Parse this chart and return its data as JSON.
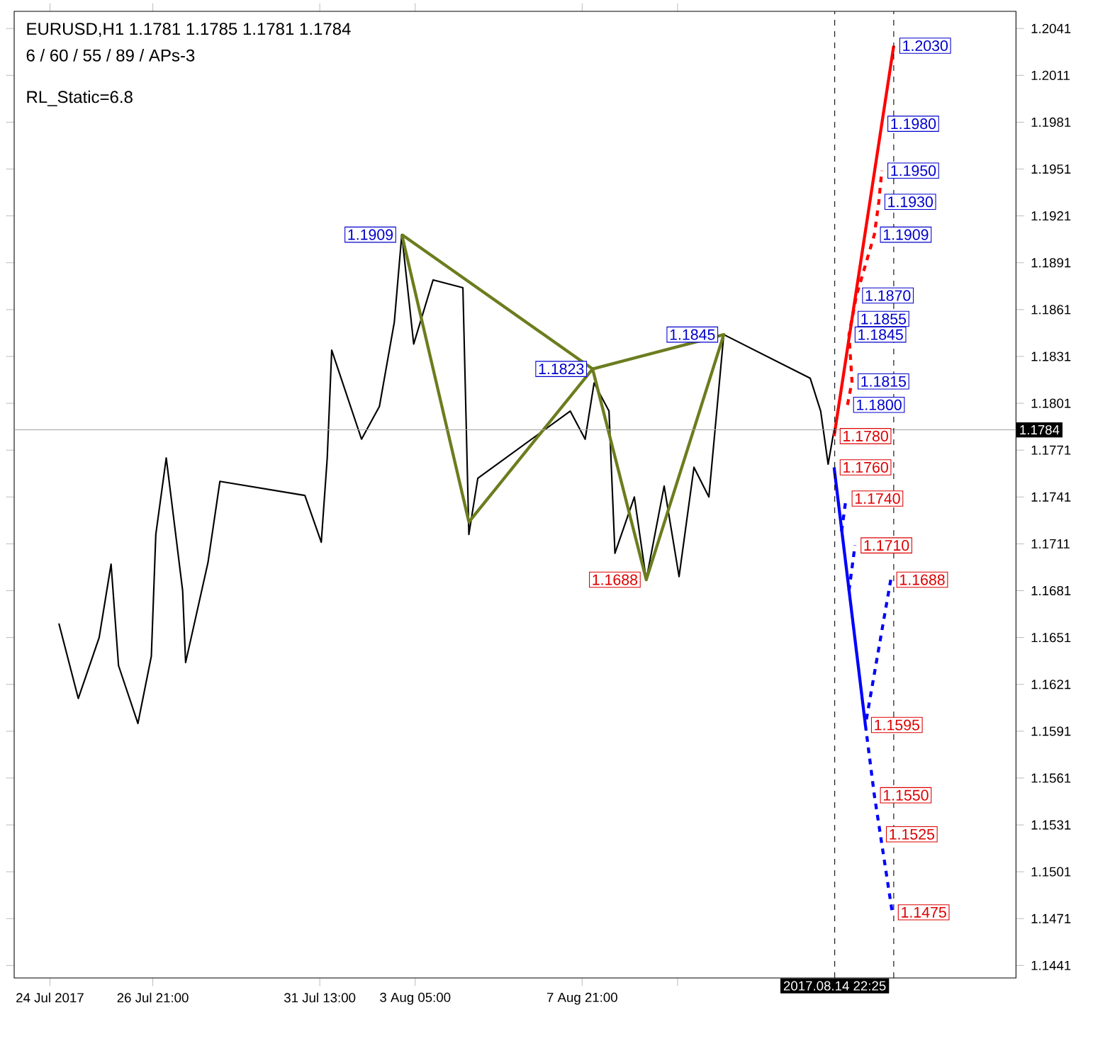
{
  "chart_data": {
    "type": "line",
    "title": "EURUSD,H1  1.1781 1.1785 1.1781 1.1784",
    "subtitle": "6 / 60 / 55 / 89 / APs-3",
    "grid": false,
    "marker": "none",
    "xlim": [
      "2017-07-23T00:00",
      "2017-08-20T00:00"
    ],
    "ylim": [
      1.1433,
      1.2052
    ],
    "xticks": [
      {
        "value": "2017-07-24",
        "label": "24 Jul 2017"
      },
      {
        "value": "2017-07-26T21:00",
        "label": "26 Jul 21:00"
      },
      {
        "value": "2017-07-31T13:00",
        "label": "31 Jul 13:00"
      },
      {
        "value": "2017-08-03T05:00",
        "label": "3 Aug 05:00"
      },
      {
        "value": "2017-08-07T21:00",
        "label": "7 Aug 21:00"
      },
      {
        "value": "2017-08-10T13:00",
        "label": null
      }
    ],
    "yticks": [
      1.2041,
      1.2011,
      1.1981,
      1.1951,
      1.1921,
      1.1891,
      1.1861,
      1.1831,
      1.1801,
      1.1771,
      1.1741,
      1.1711,
      1.1681,
      1.1651,
      1.1621,
      1.1591,
      1.1561,
      1.1531,
      1.1501,
      1.1471,
      1.1441
    ],
    "series": [
      {
        "color": "#000000",
        "x": [
          "2017-07-24T06:00",
          "2017-07-24T19:00",
          "2017-07-25T09:00",
          "2017-07-25T17:00",
          "2017-07-25T22:00",
          "2017-07-26T11:00",
          "2017-07-26T20:00",
          "2017-07-26T23:00",
          "2017-07-27T06:00",
          "2017-07-27T17:00",
          "2017-07-27T19:00",
          "2017-07-28T10:00",
          "2017-07-28T18:00",
          "2017-07-31T03:00",
          "2017-07-31T14:00",
          "2017-07-31T18:00",
          "2017-07-31T21:00",
          "2017-08-01T17:00",
          "2017-08-02T05:00",
          "2017-08-02T15:00",
          "2017-08-02T20:00",
          "2017-08-03T04:00",
          "2017-08-03T17:00",
          "2017-08-04T13:00",
          "2017-08-04T17:00",
          "2017-08-04T23:00",
          "2017-08-07T13:00",
          "2017-08-07T23:00",
          "2017-08-08T05:00",
          "2017-08-08T15:00",
          "2017-08-08T19:00",
          "2017-08-09T08:00",
          "2017-08-09T16:00",
          "2017-08-10T04:00",
          "2017-08-10T14:00",
          "2017-08-11T00:00",
          "2017-08-11T10:00",
          "2017-08-11T20:00",
          "2017-08-14T06:00",
          "2017-08-14T13:00",
          "2017-08-14T18:00",
          "2017-08-14T22:00"
        ],
        "values": [
          1.166,
          1.1612,
          1.1651,
          1.1698,
          1.1633,
          1.1596,
          1.1639,
          1.1717,
          1.1766,
          1.1681,
          1.1635,
          1.1699,
          1.1751,
          1.1742,
          1.1712,
          1.1766,
          1.1835,
          1.1778,
          1.1799,
          1.1853,
          1.1909,
          1.1839,
          1.188,
          1.1875,
          1.1717,
          1.1753,
          1.1796,
          1.1778,
          1.1814,
          1.1796,
          1.1705,
          1.1741,
          1.1688,
          1.1748,
          1.169,
          1.176,
          1.1741,
          1.1845,
          1.1817,
          1.1796,
          1.1762,
          1.1784
        ]
      },
      {
        "color": "#6b7d1e",
        "x": [
          "2017-08-02T20:00",
          "2017-08-04T17:00",
          "2017-08-08T04:00",
          "2017-08-09T16:00",
          "2017-08-11T20:00",
          "2017-08-08T04:00"
        ],
        "values": [
          1.1909,
          1.1725,
          1.1823,
          1.1688,
          1.1845,
          1.1823
        ]
      },
      {
        "color": "#6b7d1e",
        "x": [
          "2017-08-02T20:00",
          "2017-08-08T04:00"
        ],
        "values": [
          1.1909,
          1.1823
        ]
      },
      {
        "color": "#ff0000",
        "x": [
          "2017-08-14T22:00",
          "2017-08-16T14:00"
        ],
        "values": [
          1.178,
          1.203
        ]
      },
      {
        "color": "#ff0000",
        "line_style": "dashed",
        "x": [
          "2017-08-15T07:00",
          "2017-08-15T10:00",
          "2017-08-15T08:00",
          "2017-08-15T10:00",
          "2017-08-15T13:00",
          "2017-08-16T01:00",
          "2017-08-16T04:00",
          "2017-08-16T06:00"
        ],
        "values": [
          1.18,
          1.1815,
          1.1845,
          1.1855,
          1.187,
          1.1909,
          1.193,
          1.195
        ]
      },
      {
        "color": "#0000ff",
        "x": [
          "2017-08-14T22:00",
          "2017-08-15T19:00"
        ],
        "values": [
          1.176,
          1.1595
        ]
      },
      {
        "color": "#0000ff",
        "line_style": "dashed",
        "x": [
          "2017-08-15T03:00",
          "2017-08-15T06:00"
        ],
        "values": [
          1.1719,
          1.174
        ]
      },
      {
        "color": "#0000ff",
        "line_style": "dashed",
        "x": [
          "2017-08-15T08:00",
          "2017-08-15T12:00"
        ],
        "values": [
          1.1681,
          1.171
        ]
      },
      {
        "color": "#0000ff",
        "line_style": "dashed",
        "x": [
          "2017-08-16T12:00",
          "2017-08-15T19:00",
          "2017-08-16T01:00",
          "2017-08-16T05:00",
          "2017-08-16T13:00"
        ],
        "values": [
          1.1688,
          1.1595,
          1.155,
          1.1525,
          1.1475
        ]
      }
    ],
    "ref_lines": [
      {
        "axis": "y",
        "value": 1.1784,
        "label": "1.1784",
        "color": "#a0a0a0"
      },
      {
        "axis": "x",
        "value": "2017-08-14T22:25",
        "label": "2017.08.14 22:25",
        "color": "#000000",
        "line_style": "dashed"
      },
      {
        "axis": "x",
        "value": "2017-08-16T14:00",
        "color": "#000000",
        "line_style": "dashed"
      }
    ],
    "annotations": [
      "RL_Static=6.8",
      {
        "text": "1.2030",
        "x": "2017-08-16T14:00",
        "y": 1.203
      },
      {
        "text": "1.1980",
        "x": "2017-08-16T06:00",
        "y": 1.198
      },
      {
        "text": "1.1950",
        "x": "2017-08-16T06:00",
        "y": 1.195
      },
      {
        "text": "1.1930",
        "x": "2017-08-16T04:00",
        "y": 1.193
      },
      {
        "text": "1.1909",
        "x": "2017-08-16T01:00",
        "y": 1.1909
      },
      {
        "text": "1.1870",
        "x": "2017-08-15T13:00",
        "y": 1.187
      },
      {
        "text": "1.1855",
        "x": "2017-08-15T10:00",
        "y": 1.1855
      },
      {
        "text": "1.1845",
        "x": "2017-08-15T08:00",
        "y": 1.1845
      },
      {
        "text": "1.1815",
        "x": "2017-08-15T10:00",
        "y": 1.1815
      },
      {
        "text": "1.1800",
        "x": "2017-08-15T07:00",
        "y": 1.18
      },
      {
        "text": "1.1780",
        "x": "2017-08-14T22:00",
        "y": 1.178
      },
      {
        "text": "1.1760",
        "x": "2017-08-14T22:00",
        "y": 1.176
      },
      {
        "text": "1.1740",
        "x": "2017-08-15T06:00",
        "y": 1.174
      },
      {
        "text": "1.1710",
        "x": "2017-08-15T12:00",
        "y": 1.171
      },
      {
        "text": "1.1688",
        "x": "2017-08-16T12:00",
        "y": 1.1688
      },
      {
        "text": "1.1595",
        "x": "2017-08-15T19:00",
        "y": 1.1595
      },
      {
        "text": "1.1550",
        "x": "2017-08-16T01:00",
        "y": 1.155
      },
      {
        "text": "1.1525",
        "x": "2017-08-16T05:00",
        "y": 1.1525
      },
      {
        "text": "1.1475",
        "x": "2017-08-16T13:00",
        "y": 1.1475
      },
      {
        "text": "1.1909",
        "x": "2017-08-02T20:00",
        "y": 1.1909
      },
      {
        "text": "1.1823",
        "x": "2017-08-08T04:00",
        "y": 1.1823
      },
      {
        "text": "1.1845",
        "x": "2017-08-11T20:00",
        "y": 1.1845
      },
      {
        "text": "1.1688",
        "x": "2017-08-09T16:00",
        "y": 1.1688
      }
    ]
  }
}
